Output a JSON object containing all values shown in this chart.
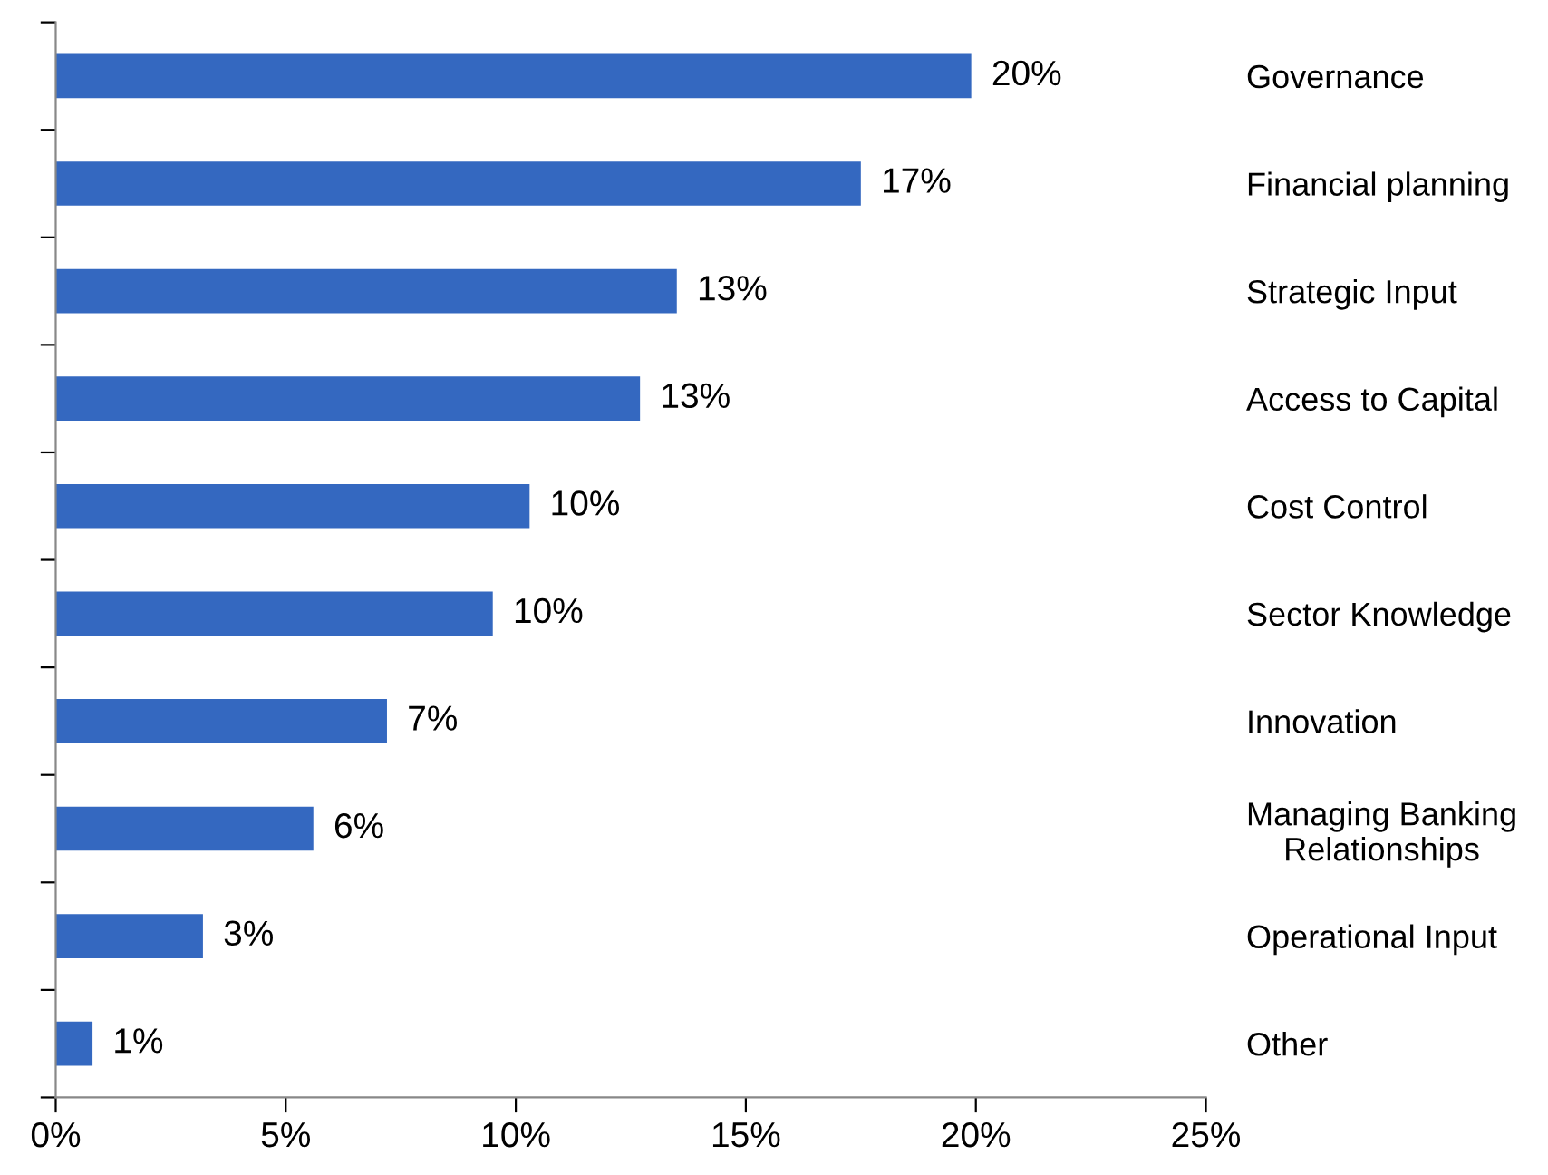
{
  "chart_data": {
    "type": "bar",
    "orientation": "horizontal",
    "categories": [
      "Governance",
      "Financial planning",
      "Strategic Input",
      "Access to Capital",
      "Cost Control",
      "Sector Knowledge",
      "Innovation",
      "Managing Banking\nRelationships",
      "Operational Input",
      "Other"
    ],
    "values": [
      19.9,
      17.5,
      13.5,
      12.7,
      10.3,
      9.5,
      7.2,
      5.6,
      3.2,
      0.8
    ],
    "value_labels": [
      "20%",
      "17%",
      "13%",
      "13%",
      "10%",
      "10%",
      "7%",
      "6%",
      "3%",
      "1%"
    ],
    "color": "#3468c0",
    "xlim": [
      0,
      25
    ],
    "xticks": [
      {
        "value": 0,
        "label": "0%"
      },
      {
        "value": 5,
        "label": "5%"
      },
      {
        "value": 10,
        "label": "10%"
      },
      {
        "value": 15,
        "label": "15%"
      },
      {
        "value": 20,
        "label": "20%"
      },
      {
        "value": 25,
        "label": "25%"
      }
    ],
    "grid": false,
    "legend": false
  }
}
